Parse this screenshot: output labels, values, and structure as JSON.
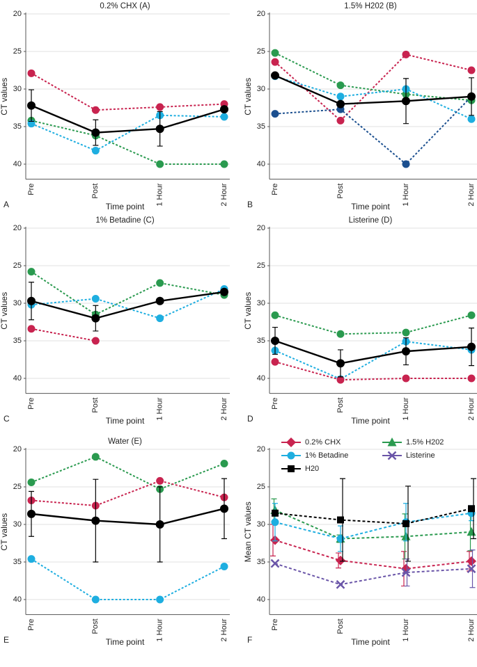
{
  "chart_data": [
    {
      "type": "line",
      "title": "0.2% CHX (A)",
      "panel_label": "A",
      "x_label": "Time point",
      "y_label": "CT values",
      "categories": [
        "Pre",
        "Post",
        "1 Hour",
        "2 Hour"
      ],
      "ylim": [
        20,
        42
      ],
      "y_reversed": true,
      "yticks": [
        20,
        25,
        30,
        35,
        40
      ],
      "grid": true,
      "series": [
        {
          "color": "#c8234f",
          "line_style": "dotted",
          "marker": "circle",
          "values": [
            27.9,
            32.8,
            32.4,
            32.0
          ]
        },
        {
          "color": "#2a9a4f",
          "line_style": "dotted",
          "marker": "circle",
          "values": [
            34.2,
            36.2,
            40,
            40
          ]
        },
        {
          "color": "#1eaee0",
          "line_style": "dotted",
          "marker": "circle",
          "values": [
            34.6,
            38.2,
            33.5,
            33.7
          ]
        },
        {
          "color": "#000000",
          "line_style": "solid",
          "marker": "circle",
          "values": [
            32.2,
            35.8,
            35.3,
            32.7
          ],
          "errors": [
            2.1,
            1.7,
            2.3,
            null
          ]
        }
      ]
    },
    {
      "type": "line",
      "title": "1.5% H202 (B)",
      "panel_label": "B",
      "x_label": "Time point",
      "y_label": "CT values",
      "categories": [
        "Pre",
        "Post",
        "1 Hour",
        "2 Hour"
      ],
      "ylim": [
        20,
        42
      ],
      "y_reversed": true,
      "yticks": [
        20,
        25,
        30,
        35,
        40
      ],
      "grid": true,
      "series": [
        {
          "color": "#c8234f",
          "line_style": "dotted",
          "marker": "circle",
          "values": [
            26.4,
            34.2,
            25.4,
            27.5
          ]
        },
        {
          "color": "#2a9a4f",
          "line_style": "dotted",
          "marker": "circle",
          "values": [
            25.2,
            29.5,
            30.7,
            31.5
          ]
        },
        {
          "color": "#1eaee0",
          "line_style": "dotted",
          "marker": "circle",
          "values": [
            28.3,
            31.0,
            30.0,
            34.0
          ]
        },
        {
          "color": "#1b4f8f",
          "line_style": "dotted",
          "marker": "circle",
          "values": [
            33.3,
            32.7,
            40,
            31.0
          ]
        },
        {
          "color": "#000000",
          "line_style": "solid",
          "marker": "circle",
          "values": [
            28.2,
            32.0,
            31.6,
            31.0
          ],
          "errors": [
            null,
            null,
            3.0,
            2.5
          ]
        }
      ]
    },
    {
      "type": "line",
      "title": "1% Betadine (C)",
      "panel_label": "C",
      "x_label": "Time point",
      "y_label": "CT values",
      "categories": [
        "Pre",
        "Post",
        "1 Hour",
        "2 Hour"
      ],
      "ylim": [
        20,
        42
      ],
      "y_reversed": true,
      "yticks": [
        20,
        25,
        30,
        35,
        40
      ],
      "grid": true,
      "series": [
        {
          "color": "#2a9a4f",
          "line_style": "dotted",
          "marker": "circle",
          "values": [
            25.8,
            31.5,
            27.3,
            28.9
          ]
        },
        {
          "color": "#1eaee0",
          "line_style": "dotted",
          "marker": "circle",
          "values": [
            30.2,
            29.4,
            32.0,
            28.1
          ]
        },
        {
          "color": "#c8234f",
          "line_style": "dotted",
          "marker": "circle",
          "values": [
            33.4,
            35.0,
            null,
            null
          ]
        },
        {
          "color": "#000000",
          "line_style": "solid",
          "marker": "circle",
          "values": [
            29.7,
            32.0,
            29.7,
            28.5
          ],
          "errors": [
            2.5,
            1.7,
            null,
            null
          ]
        }
      ]
    },
    {
      "type": "line",
      "title": "Listerine (D)",
      "panel_label": "D",
      "x_label": "Time point",
      "y_label": "CT values",
      "categories": [
        "Pre",
        "Post",
        "1 Hour",
        "2 Hour"
      ],
      "ylim": [
        20,
        42
      ],
      "y_reversed": true,
      "yticks": [
        20,
        25,
        30,
        35,
        40
      ],
      "grid": true,
      "series": [
        {
          "color": "#2a9a4f",
          "line_style": "dotted",
          "marker": "circle",
          "values": [
            31.6,
            34.1,
            33.9,
            31.6
          ]
        },
        {
          "color": "#1eaee0",
          "line_style": "dotted",
          "marker": "circle",
          "values": [
            36.3,
            40.1,
            35.1,
            36.2
          ]
        },
        {
          "color": "#c8234f",
          "line_style": "dotted",
          "marker": "circle",
          "values": [
            37.8,
            40.2,
            40.0,
            40.0
          ]
        },
        {
          "color": "#000000",
          "line_style": "solid",
          "marker": "circle",
          "values": [
            35.0,
            38.0,
            36.4,
            35.8
          ],
          "errors": [
            1.8,
            1.8,
            1.8,
            2.5
          ]
        }
      ]
    },
    {
      "type": "line",
      "title": "Water (E)",
      "panel_label": "E",
      "x_label": "Time point",
      "y_label": "CT values",
      "categories": [
        "Pre",
        "Post",
        "1 Hour",
        "2 Hour"
      ],
      "ylim": [
        20,
        42
      ],
      "y_reversed": true,
      "yticks": [
        20,
        25,
        30,
        35,
        40
      ],
      "grid": true,
      "series": [
        {
          "color": "#2a9a4f",
          "line_style": "dotted",
          "marker": "circle",
          "values": [
            24.4,
            21.0,
            25.3,
            21.9
          ]
        },
        {
          "color": "#c8234f",
          "line_style": "dotted",
          "marker": "circle",
          "values": [
            26.8,
            27.5,
            24.2,
            26.4
          ]
        },
        {
          "color": "#000000",
          "line_style": "solid",
          "marker": "circle",
          "values": [
            28.6,
            29.5,
            30.0,
            27.9
          ],
          "errors": [
            3.0,
            5.5,
            5.0,
            4.0
          ]
        },
        {
          "color": "#1eaee0",
          "line_style": "dotted",
          "marker": "circle",
          "values": [
            34.6,
            40.0,
            40.0,
            35.6
          ]
        }
      ]
    },
    {
      "type": "line",
      "panel_label": "F",
      "x_label": "Time point",
      "y_label": "Mean CT values",
      "categories": [
        "Pre",
        "Post",
        "1 Hour",
        "2 Hour"
      ],
      "ylim": [
        20,
        42
      ],
      "y_reversed": true,
      "yticks": [
        20,
        25,
        30,
        35,
        40
      ],
      "grid": true,
      "legend": "top",
      "series": [
        {
          "name": "0.2% CHX",
          "color": "#c8234f",
          "line_style": "dashed",
          "marker": "diamond",
          "values": [
            32.1,
            34.8,
            35.9,
            34.9
          ],
          "errors": [
            2.1,
            1.0,
            2.3,
            1.3
          ]
        },
        {
          "name": "1.5% H202",
          "color": "#2a9a4f",
          "line_style": "dashed",
          "marker": "triangle",
          "values": [
            28.1,
            31.9,
            31.6,
            31.0
          ],
          "errors": [
            1.5,
            0.5,
            3.0,
            2.5
          ]
        },
        {
          "name": "1% Betadine",
          "color": "#1eaee0",
          "line_style": "dashed",
          "marker": "circle",
          "values": [
            29.7,
            31.9,
            29.7,
            28.5
          ],
          "errors": [
            2.5,
            1.7,
            2.5,
            1.0
          ]
        },
        {
          "name": "Listerine",
          "color": "#6a55a8",
          "line_style": "dashed",
          "marker": "x",
          "values": [
            35.2,
            38.0,
            36.4,
            35.9
          ],
          "errors": [
            null,
            null,
            1.8,
            2.5
          ]
        },
        {
          "name": "H20",
          "color": "#000000",
          "line_style": "dashed",
          "marker": "square",
          "values": [
            28.5,
            29.4,
            29.9,
            27.9
          ],
          "errors": [
            null,
            5.5,
            5.0,
            4.0
          ]
        }
      ]
    }
  ]
}
